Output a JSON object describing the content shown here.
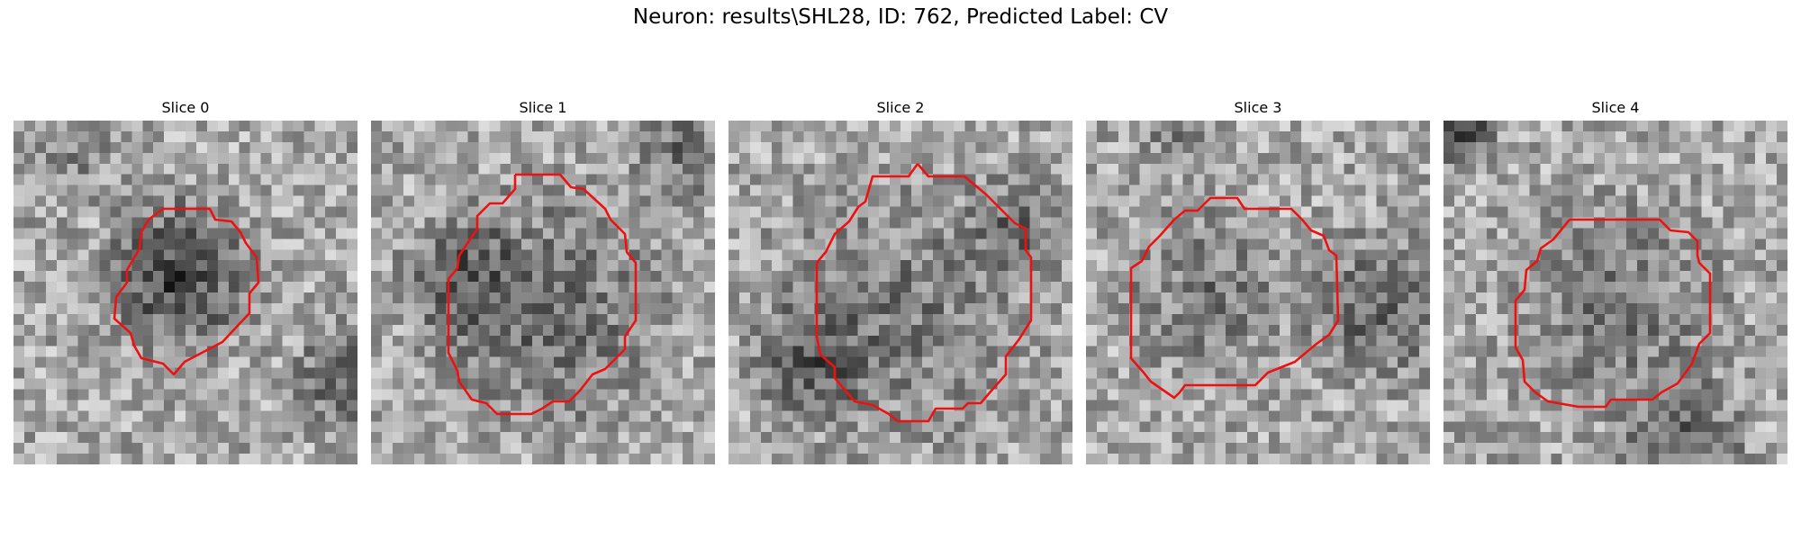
{
  "figure": {
    "title": "Neuron: results\\SHL28, ID: 762, Predicted Label: CV"
  },
  "panels": [
    {
      "title": "Slice 0"
    },
    {
      "title": "Slice 1"
    },
    {
      "title": "Slice 2"
    },
    {
      "title": "Slice 3"
    },
    {
      "title": "Slice 4"
    }
  ],
  "colors": {
    "contour": "#ee1111",
    "background": "#ffffff"
  }
}
